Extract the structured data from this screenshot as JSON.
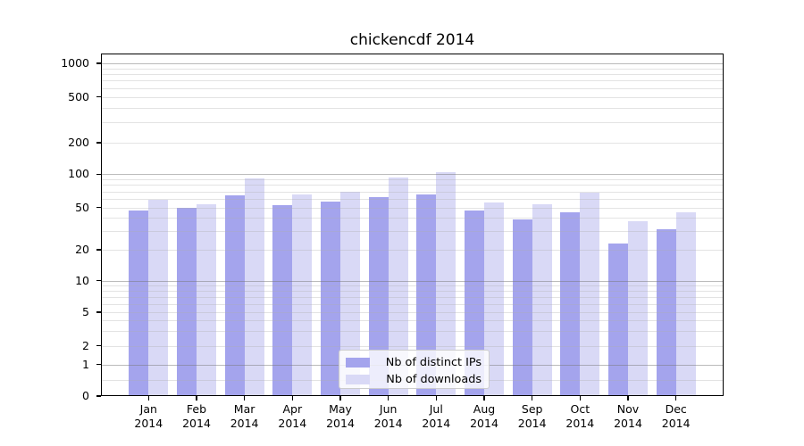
{
  "title": "chickencdf 2014",
  "chart_data": {
    "type": "bar",
    "title": "chickencdf 2014",
    "year_label": "2014",
    "categories": [
      "Jan",
      "Feb",
      "Mar",
      "Apr",
      "May",
      "Jun",
      "Jul",
      "Aug",
      "Sep",
      "Oct",
      "Nov",
      "Dec"
    ],
    "series": [
      {
        "name": "Nb of distinct IPs",
        "color": "#a4a4ed",
        "values": [
          47,
          50,
          64,
          53,
          57,
          62,
          66,
          47,
          39,
          45,
          23,
          31
        ]
      },
      {
        "name": "Nb of downloads",
        "color": "#d9d9f6",
        "values": [
          59,
          54,
          92,
          66,
          69,
          93,
          105,
          56,
          54,
          68,
          37,
          45
        ]
      }
    ],
    "yscale": "symlog",
    "ylim": [
      0,
      1000
    ],
    "y_ticks": [
      0,
      1,
      2,
      5,
      10,
      20,
      50,
      100,
      200,
      500,
      1000
    ],
    "y_major_gridlines": [
      1,
      10,
      100,
      1000
    ],
    "grid": true,
    "legend_position": "lower center",
    "xlabel": "",
    "ylabel": ""
  }
}
